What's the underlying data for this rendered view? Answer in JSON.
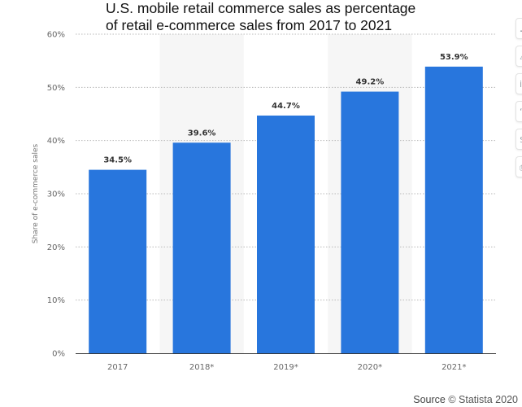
{
  "chart_data": {
    "type": "bar",
    "title_lines": [
      "U.S. mobile retail commerce sales as percentage",
      "of retail e-commerce sales from 2017 to 2021"
    ],
    "categories": [
      "2017",
      "2018*",
      "2019*",
      "2020*",
      "2021*"
    ],
    "values": [
      34.5,
      39.6,
      44.7,
      49.2,
      53.9
    ],
    "value_labels": [
      "34.5%",
      "39.6%",
      "44.7%",
      "49.2%",
      "53.9%"
    ],
    "ylabel": "Share of e-commerce sales",
    "xlabel": "",
    "ylim": [
      0,
      60
    ],
    "yticks": [
      0,
      10,
      20,
      30,
      40,
      50,
      60
    ],
    "ytick_labels": [
      "0%",
      "10%",
      "20%",
      "30%",
      "40%",
      "50%",
      "60%"
    ],
    "bar_color": "#2876dd",
    "band_color": "#f6f6f6",
    "grid": true,
    "legend": "none"
  },
  "source": {
    "word": "Source",
    "credit": "© Statista 2020"
  },
  "side_rail": {
    "icons": [
      "bell-icon",
      "alert-icon",
      "info-icon",
      "quote-icon",
      "dollar-icon",
      "print-icon"
    ]
  }
}
